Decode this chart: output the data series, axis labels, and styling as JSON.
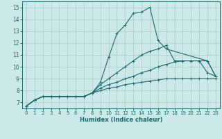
{
  "title": "",
  "xlabel": "Humidex (Indice chaleur)",
  "ylabel": "",
  "background_color": "#cce8e8",
  "grid_color": "#aacccc",
  "line_color": "#1a6b6b",
  "xlim": [
    -0.5,
    23.5
  ],
  "ylim": [
    6.5,
    15.5
  ],
  "xticks": [
    0,
    1,
    2,
    3,
    4,
    5,
    6,
    7,
    8,
    9,
    10,
    11,
    12,
    13,
    14,
    15,
    16,
    17,
    18,
    19,
    20,
    21,
    22,
    23
  ],
  "yticks": [
    7,
    8,
    9,
    10,
    11,
    12,
    13,
    14,
    15
  ],
  "curves": [
    {
      "x": [
        0,
        1,
        2,
        3,
        4,
        5,
        6,
        7,
        8,
        9,
        10,
        11,
        12,
        13,
        14,
        15,
        16,
        17,
        22,
        23
      ],
      "y": [
        6.7,
        7.2,
        7.5,
        7.5,
        7.5,
        7.5,
        7.5,
        7.5,
        7.8,
        8.7,
        10.8,
        12.8,
        13.5,
        14.5,
        14.6,
        15.0,
        12.2,
        11.5,
        10.5,
        9.2
      ]
    },
    {
      "x": [
        0,
        1,
        2,
        3,
        4,
        5,
        6,
        7,
        8,
        9,
        10,
        11,
        12,
        13,
        14,
        15,
        16,
        17,
        18,
        19,
        20,
        21,
        22,
        23
      ],
      "y": [
        6.7,
        7.2,
        7.5,
        7.5,
        7.5,
        7.5,
        7.5,
        7.5,
        7.8,
        8.5,
        9.0,
        9.5,
        10.0,
        10.5,
        11.0,
        11.3,
        11.5,
        11.8,
        10.5,
        10.5,
        10.5,
        10.5,
        10.5,
        9.2
      ]
    },
    {
      "x": [
        0,
        1,
        2,
        3,
        4,
        5,
        6,
        7,
        8,
        9,
        10,
        11,
        12,
        13,
        14,
        15,
        16,
        17,
        18,
        19,
        20,
        21,
        22,
        23
      ],
      "y": [
        6.7,
        7.2,
        7.5,
        7.5,
        7.5,
        7.5,
        7.5,
        7.5,
        7.8,
        8.2,
        8.5,
        8.7,
        9.0,
        9.2,
        9.5,
        9.7,
        10.0,
        10.2,
        10.4,
        10.5,
        10.5,
        10.5,
        9.5,
        9.2
      ]
    },
    {
      "x": [
        0,
        1,
        2,
        3,
        4,
        5,
        6,
        7,
        8,
        9,
        10,
        11,
        12,
        13,
        14,
        15,
        16,
        17,
        18,
        19,
        20,
        21,
        22,
        23
      ],
      "y": [
        6.7,
        7.2,
        7.5,
        7.5,
        7.5,
        7.5,
        7.5,
        7.5,
        7.8,
        8.0,
        8.2,
        8.3,
        8.5,
        8.6,
        8.7,
        8.8,
        8.9,
        9.0,
        9.0,
        9.0,
        9.0,
        9.0,
        9.0,
        9.0
      ]
    }
  ]
}
